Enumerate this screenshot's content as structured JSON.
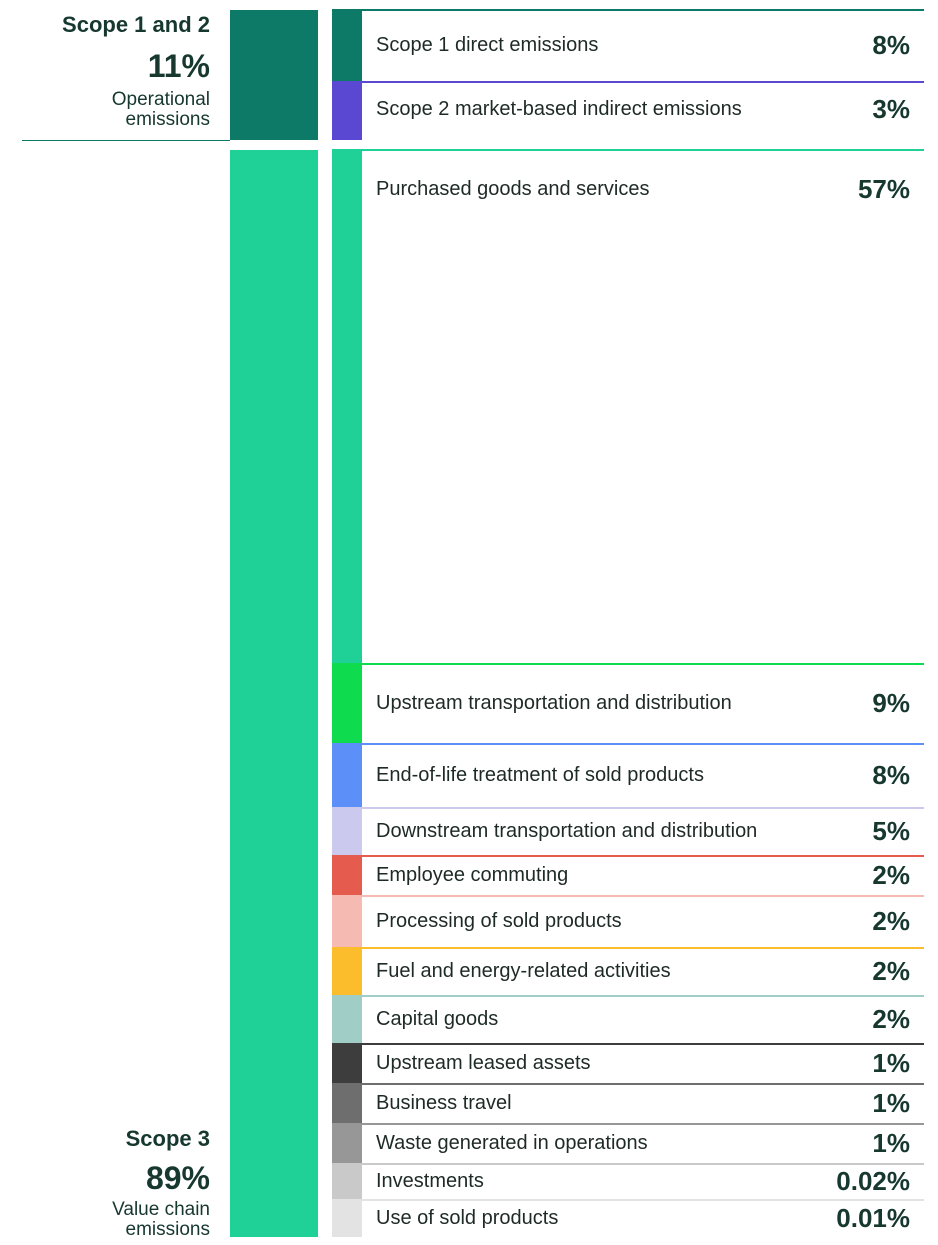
{
  "chart_data": {
    "type": "bar",
    "groups": [
      {
        "heading": "Scope 1 and 2",
        "value_label": "11%",
        "description_line1": "Operational",
        "description_line2": "emissions",
        "value": 11,
        "color": "#0d7a68"
      },
      {
        "heading": "Scope 3",
        "value_label": "89%",
        "description_line1": "Value chain",
        "description_line2": "emissions",
        "value": 89,
        "color": "#1fd196"
      }
    ],
    "categories": [
      {
        "label": "Scope 1 direct emissions",
        "value_label": "8%",
        "value": 8,
        "group": 0,
        "color": "#0d7a68"
      },
      {
        "label": "Scope 2 market-based indirect emissions",
        "value_label": "3%",
        "value": 3,
        "group": 0,
        "color": "#5a47d2"
      },
      {
        "label": "Purchased goods and services",
        "value_label": "57%",
        "value": 57,
        "group": 1,
        "color": "#1fd196"
      },
      {
        "label": "Upstream transportation and distribution",
        "value_label": "9%",
        "value": 9,
        "group": 1,
        "color": "#0fdb4e"
      },
      {
        "label": "End-of-life treatment of sold products",
        "value_label": "8%",
        "value": 8,
        "group": 1,
        "color": "#5c8ff8"
      },
      {
        "label": "Downstream transportation and distribution",
        "value_label": "5%",
        "value": 5,
        "group": 1,
        "color": "#cbc9ee"
      },
      {
        "label": "Employee commuting",
        "value_label": "2%",
        "value": 2,
        "group": 1,
        "color": "#e55c4f"
      },
      {
        "label": "Processing of sold products",
        "value_label": "2%",
        "value": 2,
        "group": 1,
        "color": "#f5bab1"
      },
      {
        "label": "Fuel and energy-related activities",
        "value_label": "2%",
        "value": 2,
        "group": 1,
        "color": "#fbbd2c"
      },
      {
        "label": "Capital goods",
        "value_label": "2%",
        "value": 2,
        "group": 1,
        "color": "#a0cdc5"
      },
      {
        "label": "Upstream leased assets",
        "value_label": "1%",
        "value": 1,
        "group": 1,
        "color": "#3d3d3d"
      },
      {
        "label": "Business travel",
        "value_label": "1%",
        "value": 1,
        "group": 1,
        "color": "#6e6e6e"
      },
      {
        "label": "Waste generated in operations",
        "value_label": "1%",
        "value": 1,
        "group": 1,
        "color": "#979797"
      },
      {
        "label": "Investments",
        "value_label": "0.02%",
        "value": 0.02,
        "group": 1,
        "color": "#c9c9c9"
      },
      {
        "label": "Use of sold products",
        "value_label": "0.01%",
        "value": 0.01,
        "group": 1,
        "color": "#e3e3e3"
      }
    ]
  }
}
